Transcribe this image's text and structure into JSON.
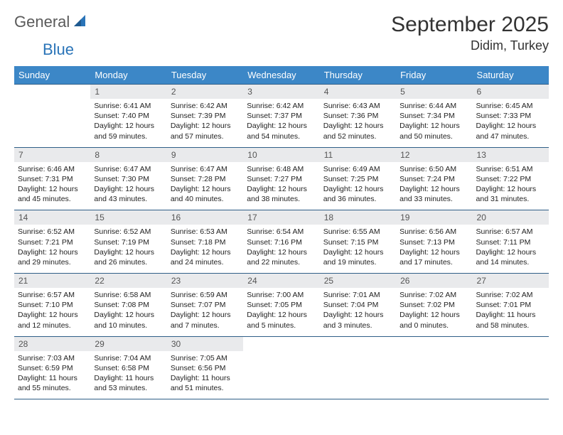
{
  "brand": {
    "part1": "General",
    "part2": "Blue"
  },
  "header": {
    "title": "September 2025",
    "location": "Didim, Turkey"
  },
  "style": {
    "header_bg": "#3c87c7",
    "header_text": "#ffffff",
    "daynum_bg": "#e9eaec",
    "border_color": "#2f5e87",
    "brand_accent": "#2a74b8"
  },
  "daynames": [
    "Sunday",
    "Monday",
    "Tuesday",
    "Wednesday",
    "Thursday",
    "Friday",
    "Saturday"
  ],
  "weeks": [
    [
      {
        "n": "",
        "sr": "",
        "ss": "",
        "dl": ""
      },
      {
        "n": "1",
        "sr": "Sunrise: 6:41 AM",
        "ss": "Sunset: 7:40 PM",
        "dl": "Daylight: 12 hours and 59 minutes."
      },
      {
        "n": "2",
        "sr": "Sunrise: 6:42 AM",
        "ss": "Sunset: 7:39 PM",
        "dl": "Daylight: 12 hours and 57 minutes."
      },
      {
        "n": "3",
        "sr": "Sunrise: 6:42 AM",
        "ss": "Sunset: 7:37 PM",
        "dl": "Daylight: 12 hours and 54 minutes."
      },
      {
        "n": "4",
        "sr": "Sunrise: 6:43 AM",
        "ss": "Sunset: 7:36 PM",
        "dl": "Daylight: 12 hours and 52 minutes."
      },
      {
        "n": "5",
        "sr": "Sunrise: 6:44 AM",
        "ss": "Sunset: 7:34 PM",
        "dl": "Daylight: 12 hours and 50 minutes."
      },
      {
        "n": "6",
        "sr": "Sunrise: 6:45 AM",
        "ss": "Sunset: 7:33 PM",
        "dl": "Daylight: 12 hours and 47 minutes."
      }
    ],
    [
      {
        "n": "7",
        "sr": "Sunrise: 6:46 AM",
        "ss": "Sunset: 7:31 PM",
        "dl": "Daylight: 12 hours and 45 minutes."
      },
      {
        "n": "8",
        "sr": "Sunrise: 6:47 AM",
        "ss": "Sunset: 7:30 PM",
        "dl": "Daylight: 12 hours and 43 minutes."
      },
      {
        "n": "9",
        "sr": "Sunrise: 6:47 AM",
        "ss": "Sunset: 7:28 PM",
        "dl": "Daylight: 12 hours and 40 minutes."
      },
      {
        "n": "10",
        "sr": "Sunrise: 6:48 AM",
        "ss": "Sunset: 7:27 PM",
        "dl": "Daylight: 12 hours and 38 minutes."
      },
      {
        "n": "11",
        "sr": "Sunrise: 6:49 AM",
        "ss": "Sunset: 7:25 PM",
        "dl": "Daylight: 12 hours and 36 minutes."
      },
      {
        "n": "12",
        "sr": "Sunrise: 6:50 AM",
        "ss": "Sunset: 7:24 PM",
        "dl": "Daylight: 12 hours and 33 minutes."
      },
      {
        "n": "13",
        "sr": "Sunrise: 6:51 AM",
        "ss": "Sunset: 7:22 PM",
        "dl": "Daylight: 12 hours and 31 minutes."
      }
    ],
    [
      {
        "n": "14",
        "sr": "Sunrise: 6:52 AM",
        "ss": "Sunset: 7:21 PM",
        "dl": "Daylight: 12 hours and 29 minutes."
      },
      {
        "n": "15",
        "sr": "Sunrise: 6:52 AM",
        "ss": "Sunset: 7:19 PM",
        "dl": "Daylight: 12 hours and 26 minutes."
      },
      {
        "n": "16",
        "sr": "Sunrise: 6:53 AM",
        "ss": "Sunset: 7:18 PM",
        "dl": "Daylight: 12 hours and 24 minutes."
      },
      {
        "n": "17",
        "sr": "Sunrise: 6:54 AM",
        "ss": "Sunset: 7:16 PM",
        "dl": "Daylight: 12 hours and 22 minutes."
      },
      {
        "n": "18",
        "sr": "Sunrise: 6:55 AM",
        "ss": "Sunset: 7:15 PM",
        "dl": "Daylight: 12 hours and 19 minutes."
      },
      {
        "n": "19",
        "sr": "Sunrise: 6:56 AM",
        "ss": "Sunset: 7:13 PM",
        "dl": "Daylight: 12 hours and 17 minutes."
      },
      {
        "n": "20",
        "sr": "Sunrise: 6:57 AM",
        "ss": "Sunset: 7:11 PM",
        "dl": "Daylight: 12 hours and 14 minutes."
      }
    ],
    [
      {
        "n": "21",
        "sr": "Sunrise: 6:57 AM",
        "ss": "Sunset: 7:10 PM",
        "dl": "Daylight: 12 hours and 12 minutes."
      },
      {
        "n": "22",
        "sr": "Sunrise: 6:58 AM",
        "ss": "Sunset: 7:08 PM",
        "dl": "Daylight: 12 hours and 10 minutes."
      },
      {
        "n": "23",
        "sr": "Sunrise: 6:59 AM",
        "ss": "Sunset: 7:07 PM",
        "dl": "Daylight: 12 hours and 7 minutes."
      },
      {
        "n": "24",
        "sr": "Sunrise: 7:00 AM",
        "ss": "Sunset: 7:05 PM",
        "dl": "Daylight: 12 hours and 5 minutes."
      },
      {
        "n": "25",
        "sr": "Sunrise: 7:01 AM",
        "ss": "Sunset: 7:04 PM",
        "dl": "Daylight: 12 hours and 3 minutes."
      },
      {
        "n": "26",
        "sr": "Sunrise: 7:02 AM",
        "ss": "Sunset: 7:02 PM",
        "dl": "Daylight: 12 hours and 0 minutes."
      },
      {
        "n": "27",
        "sr": "Sunrise: 7:02 AM",
        "ss": "Sunset: 7:01 PM",
        "dl": "Daylight: 11 hours and 58 minutes."
      }
    ],
    [
      {
        "n": "28",
        "sr": "Sunrise: 7:03 AM",
        "ss": "Sunset: 6:59 PM",
        "dl": "Daylight: 11 hours and 55 minutes."
      },
      {
        "n": "29",
        "sr": "Sunrise: 7:04 AM",
        "ss": "Sunset: 6:58 PM",
        "dl": "Daylight: 11 hours and 53 minutes."
      },
      {
        "n": "30",
        "sr": "Sunrise: 7:05 AM",
        "ss": "Sunset: 6:56 PM",
        "dl": "Daylight: 11 hours and 51 minutes."
      },
      {
        "n": "",
        "sr": "",
        "ss": "",
        "dl": ""
      },
      {
        "n": "",
        "sr": "",
        "ss": "",
        "dl": ""
      },
      {
        "n": "",
        "sr": "",
        "ss": "",
        "dl": ""
      },
      {
        "n": "",
        "sr": "",
        "ss": "",
        "dl": ""
      }
    ]
  ]
}
